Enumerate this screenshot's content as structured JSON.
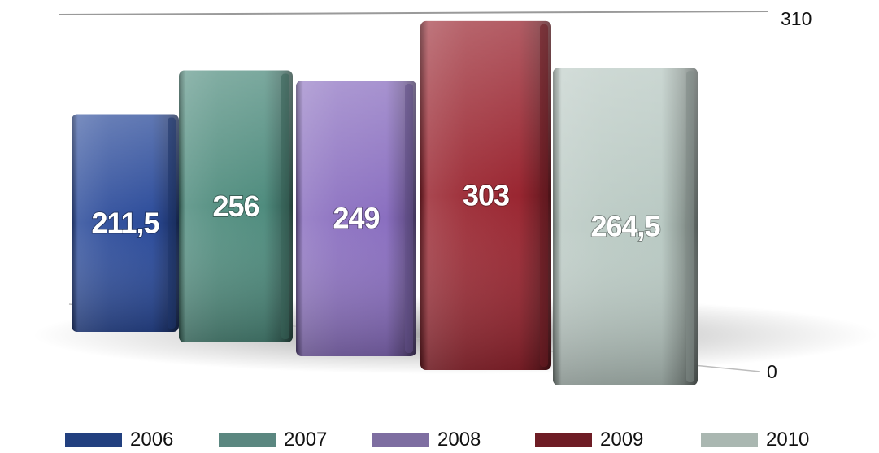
{
  "chart_data": {
    "type": "bar",
    "categories": [
      "2006",
      "2007",
      "2008",
      "2009",
      "2010"
    ],
    "values": [
      211.5,
      256,
      249,
      303,
      264.5
    ],
    "value_labels": [
      "211,5",
      "256",
      "249",
      "303",
      "264,5"
    ],
    "ylim": [
      0,
      310
    ],
    "axis_tick_labels": {
      "top": "310",
      "bottom": "0"
    },
    "legend": {
      "position": "bottom"
    },
    "colors": [
      "#2b4b9a",
      "#4f8c7e",
      "#8a6fc0",
      "#9a2631",
      "#b9c9c3"
    ],
    "legend_colors": [
      "#22407f",
      "#5b8780",
      "#7e6ea1",
      "#6e1d25",
      "#aab7b1"
    ],
    "grid": false
  }
}
